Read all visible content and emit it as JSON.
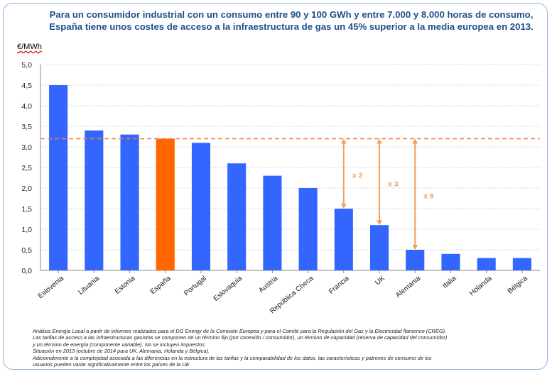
{
  "title": {
    "line1": "Para un consumidor industrial con un consumo entre 90 y 100 GWh y entre 7.000 y 8.000 horas de consumo,",
    "line2": "España tiene unos costes de acceso a la infraestructura de gas un 45% superior a la media europea en 2013."
  },
  "unit_label": "€/MWh",
  "colors": {
    "bar": "#3366ff",
    "highlight": "#ff6600",
    "arrow": "#f0a060",
    "reference_line": "#f08040"
  },
  "chart_data": {
    "type": "bar",
    "categories": [
      "Eslovenia",
      "Lituania",
      "Estonia",
      "España",
      "Portugal",
      "Eslovaquia",
      "Austria",
      "República Checa",
      "Francia",
      "UK",
      "Alemania",
      "Italia",
      "Holanda",
      "Bélgica"
    ],
    "values": [
      4.5,
      3.4,
      3.3,
      3.2,
      3.1,
      2.6,
      2.3,
      2.0,
      1.5,
      1.1,
      0.5,
      0.4,
      0.3,
      0.3
    ],
    "highlight": "España",
    "ylim": [
      0,
      5
    ],
    "yticks": [
      "0,0",
      "0,5",
      "1,0",
      "1,5",
      "2,0",
      "2,5",
      "3,0",
      "3,5",
      "4,0",
      "4,5",
      "5,0"
    ],
    "reference_value": 3.2,
    "grid": true,
    "annotations": [
      {
        "category": "Francia",
        "from": 1.5,
        "to": 3.2,
        "label": "x 2"
      },
      {
        "category": "UK",
        "from": 1.1,
        "to": 3.2,
        "label": "x 3"
      },
      {
        "category": "Alemania",
        "from": 0.5,
        "to": 3.2,
        "label": "x 6"
      }
    ]
  },
  "notes": [
    "Análisis Energía Local a partir de informes realizados para el DG Energy de la Comisión Europea y para el Comité para la Regulación del Gas y la Electricidad flamenco (CREG).",
    "Las tarifas de acceso a las infraestructuras gasistas se componen de un término fijo (por conexión / consumidor), un término de capacidad (reserva de capacidad del consumidor)",
    "y un término de energía (componente variable). No se incluyen impuestos.",
    "Situación en 2013 (octubre de 2014 para UK, Alemania, Holanda y Bélgica).",
    "Adicionalmente a la complejidad asociada a las diferencias en la estructura de las tarifas y la comparabilidad de los datos, las características y patrones de consumo de los",
    "usuarios pueden variar significativamente entre los países de la UE."
  ]
}
